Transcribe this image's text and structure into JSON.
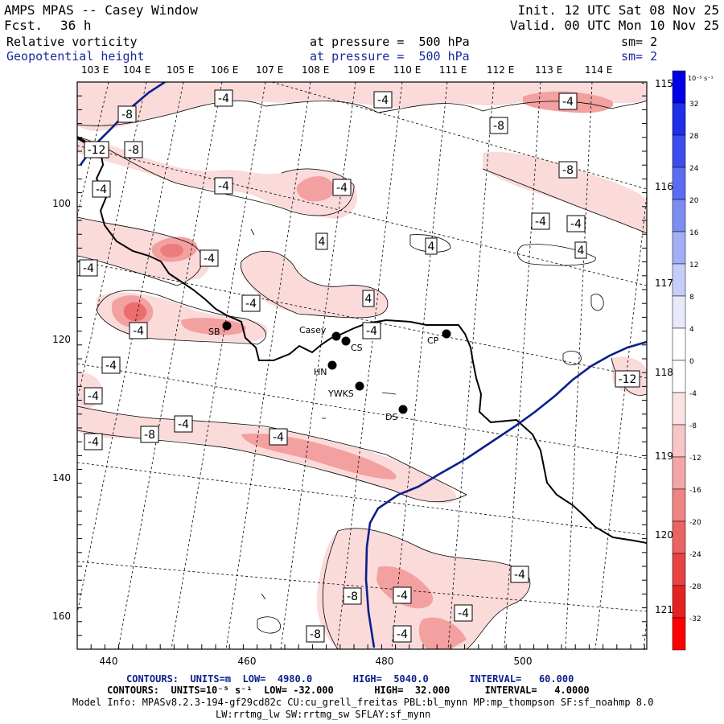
{
  "header": {
    "title": "AMPS MPAS -- Casey Window",
    "fcst_label": "Fcst.",
    "fcst_value": "36 h",
    "init": "Init. 12 UTC Sat 08 Nov 25",
    "valid": "Valid. 00 UTC Mon 10 Nov 25",
    "field1": {
      "name": "Relative vorticity",
      "level": "at pressure =  500 hPa",
      "sm": "sm= 2"
    },
    "field2": {
      "name": "Geopotential height",
      "level": "at pressure =  500 hPa",
      "sm": "sm= 2"
    }
  },
  "map": {
    "top_lon_labels": [
      "103 E",
      "104 E",
      "105 E",
      "106 E",
      "107 E",
      "108 E",
      "109 E",
      "110 E",
      "111 E",
      "112 E",
      "113 E",
      "114 E"
    ],
    "right_lon_labels": [
      "115 E",
      "116 E",
      "117 E",
      "118 E",
      "119 E",
      "120 E",
      "121 E"
    ],
    "x_ticks": [
      "440",
      "460",
      "480",
      "500"
    ],
    "y_ticks": [
      "100",
      "120",
      "140",
      "160"
    ],
    "stations": [
      {
        "name": "Casey"
      },
      {
        "name": "CS"
      },
      {
        "name": "CP"
      },
      {
        "name": "HN"
      },
      {
        "name": "YWKS"
      },
      {
        "name": "DS"
      },
      {
        "name": "SB"
      }
    ],
    "contour_labels": [
      "-8",
      "-4",
      "-4",
      "-4",
      "-8",
      "-12",
      "-8",
      "-4",
      "-4",
      "-4",
      "-8",
      "-4",
      "-4",
      "-4",
      "-4",
      "4",
      "4",
      "4",
      "-4",
      "4",
      "-4",
      "-4",
      "-4",
      "-4",
      "-4",
      "-8",
      "-4",
      "-4",
      "-4",
      "-8",
      "-4",
      "-4",
      "-12",
      "-8",
      "-4",
      "-4",
      "-4",
      "4"
    ],
    "colors": {
      "vort_pos_strong": "#e03030",
      "vort_pos_mid": "#f3a0a0",
      "vort_pos_weak": "#fbdada",
      "coast": "#000000",
      "height_contour": "#0b1f8c"
    }
  },
  "colorbar": {
    "unit": "10⁻⁵ s⁻¹",
    "levels": [
      {
        "label": "32",
        "color": "#0000e6"
      },
      {
        "label": "28",
        "color": "#1f2ee8"
      },
      {
        "label": "24",
        "color": "#3b4ded"
      },
      {
        "label": "20",
        "color": "#5a6df0"
      },
      {
        "label": "16",
        "color": "#7b8cf2"
      },
      {
        "label": "12",
        "color": "#a3aef6"
      },
      {
        "label": "8",
        "color": "#c7cdf9"
      },
      {
        "label": "4",
        "color": "#e8eafc"
      },
      {
        "label": "0",
        "color": "#ffffff"
      },
      {
        "label": "-4",
        "color": "#ffffff"
      },
      {
        "label": "-8",
        "color": "#fbe3e3"
      },
      {
        "label": "-12",
        "color": "#f8c6c6"
      },
      {
        "label": "-16",
        "color": "#f4a6a6"
      },
      {
        "label": "-20",
        "color": "#f08484"
      },
      {
        "label": "-24",
        "color": "#ec6363"
      },
      {
        "label": "-28",
        "color": "#e84242"
      },
      {
        "label": "-32",
        "color": "#e52222"
      },
      {
        "label": "",
        "color": "#ff0000"
      }
    ]
  },
  "footer": {
    "line1": "CONTOURS:  UNITS=m  LOW=  4980.0       HIGH=  5040.0       INTERVAL=   60.000",
    "line2": "CONTOURS:  UNITS=10⁻⁵ s⁻¹  LOW= -32.000       HIGH=  32.000      INTERVAL=   4.0000",
    "line3": "Model Info: MPASv8.2.3-194-gf29cd82c CU:cu_grell_freitas PBL:bl_mynn MP:mp_thompson SF:sf_noahmp 8.0",
    "line4": "LW:rrtmg_lw SW:rrtmg_sw SFLAY:sf_mynn"
  }
}
